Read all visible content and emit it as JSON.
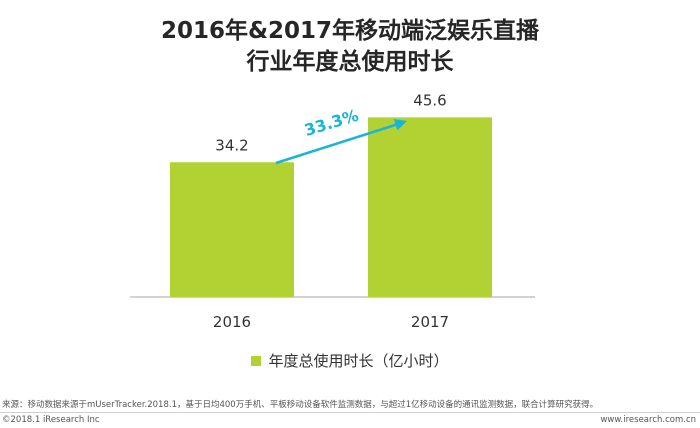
{
  "title_line1": "2016年&2017年移动端泛娱乐直播",
  "title_line2": "行业年度总使用时长",
  "chart_data": {
    "type": "bar",
    "categories": [
      "2016",
      "2017"
    ],
    "series": [
      {
        "name": "年度总使用时长（亿小时）",
        "values": [
          34.2,
          45.6
        ],
        "color": "#b1d232"
      }
    ],
    "data_labels": [
      "34.2",
      "45.6"
    ],
    "annotation": {
      "text": "33.3%",
      "color": "#1ab4d8"
    },
    "ylim": [
      0,
      50
    ],
    "grid": false,
    "legend": "bottom-center"
  },
  "source": "来源：移动数据来源于mUserTracker.2018.1，基于日均400万手机、平板移动设备软件监测数据，与超过1亿移动设备的通讯监测数据，联合计算研究获得。",
  "copyright": "©2018.1 iResearch Inc",
  "website": "www.iresearch.com.cn"
}
